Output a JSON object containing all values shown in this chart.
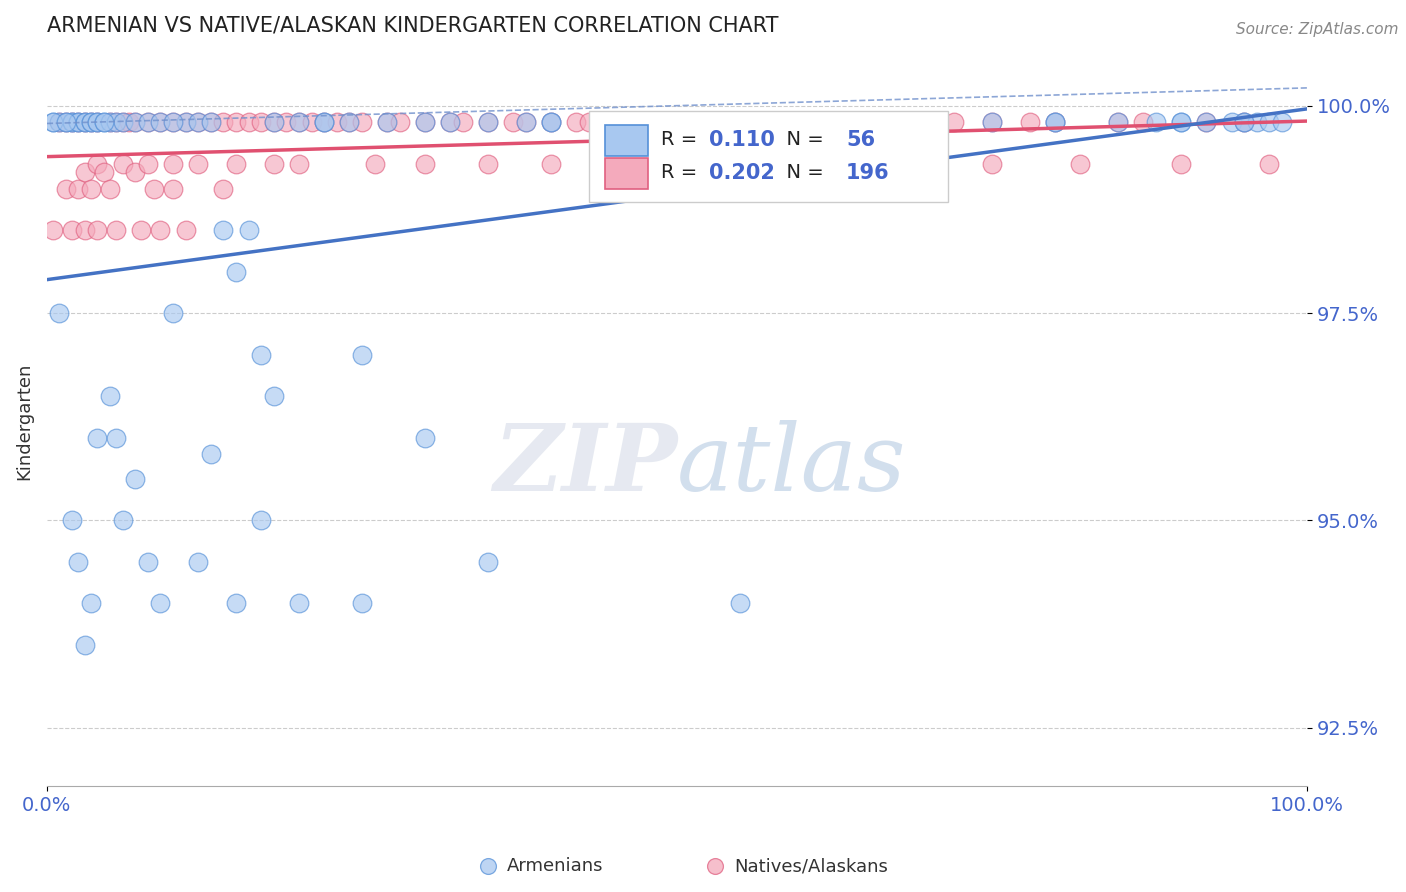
{
  "title": "ARMENIAN VS NATIVE/ALASKAN KINDERGARTEN CORRELATION CHART",
  "source": "Source: ZipAtlas.com",
  "ylabel": "Kindergarten",
  "xlim": [
    0.0,
    1.0
  ],
  "ylim": [
    0.918,
    1.006
  ],
  "yticks": [
    0.925,
    0.95,
    0.975,
    1.0
  ],
  "ytick_labels": [
    "92.5%",
    "95.0%",
    "97.5%",
    "100.0%"
  ],
  "xticks": [
    0.0,
    1.0
  ],
  "xtick_labels": [
    "0.0%",
    "100.0%"
  ],
  "legend_r_armenian": "0.110",
  "legend_n_armenian": "56",
  "legend_r_native": "0.202",
  "legend_n_native": "196",
  "legend_label_armenian": "Armenians",
  "legend_label_native": "Natives/Alaskans",
  "color_armenian_fill": "#A8C8F0",
  "color_armenian_edge": "#5590D8",
  "color_native_fill": "#F4AABC",
  "color_native_edge": "#E06080",
  "color_line_armenian": "#4472C4",
  "color_line_native": "#E05070",
  "color_line_dashed": "#7090CC",
  "color_text_blue": "#4466CC",
  "color_text_dark": "#222222",
  "background_color": "#FFFFFF",
  "grid_color": "#CCCCCC",
  "armenian_x": [
    0.005,
    0.01,
    0.015,
    0.02,
    0.02,
    0.025,
    0.025,
    0.03,
    0.03,
    0.035,
    0.035,
    0.04,
    0.04,
    0.045,
    0.05,
    0.055,
    0.06,
    0.07,
    0.08,
    0.09,
    0.1,
    0.11,
    0.12,
    0.13,
    0.14,
    0.15,
    0.16,
    0.17,
    0.18,
    0.2,
    0.22,
    0.24,
    0.25,
    0.27,
    0.3,
    0.32,
    0.35,
    0.38,
    0.4,
    0.45,
    0.5,
    0.55,
    0.6,
    0.65,
    0.7,
    0.75,
    0.8,
    0.85,
    0.88,
    0.9,
    0.92,
    0.94,
    0.95,
    0.96,
    0.97,
    0.98
  ],
  "armenian_y": [
    0.998,
    0.998,
    0.998,
    0.998,
    0.998,
    0.998,
    0.998,
    0.998,
    0.998,
    0.998,
    0.998,
    0.998,
    0.998,
    0.998,
    0.998,
    0.998,
    0.998,
    0.998,
    0.998,
    0.998,
    0.975,
    0.998,
    0.998,
    0.958,
    0.985,
    0.98,
    0.985,
    0.97,
    0.998,
    0.998,
    0.998,
    0.998,
    0.97,
    0.998,
    0.96,
    0.998,
    0.998,
    0.998,
    0.998,
    0.998,
    0.998,
    0.998,
    0.998,
    0.998,
    0.998,
    0.998,
    0.998,
    0.998,
    0.998,
    0.998,
    0.998,
    0.998,
    0.998,
    0.998,
    0.998,
    0.998
  ],
  "armenian_x2": [
    0.005,
    0.01,
    0.015,
    0.02,
    0.025,
    0.03,
    0.035,
    0.04,
    0.045,
    0.05,
    0.055,
    0.06,
    0.07,
    0.08,
    0.09,
    0.1,
    0.12,
    0.13,
    0.15,
    0.17,
    0.18,
    0.2,
    0.22,
    0.25,
    0.3,
    0.35,
    0.4,
    0.45,
    0.5,
    0.55,
    0.6,
    0.65,
    0.7,
    0.8,
    0.9,
    0.95
  ],
  "armenian_y2": [
    0.998,
    0.975,
    0.998,
    0.95,
    0.945,
    0.935,
    0.94,
    0.96,
    0.998,
    0.965,
    0.96,
    0.95,
    0.955,
    0.945,
    0.94,
    0.998,
    0.945,
    0.998,
    0.94,
    0.95,
    0.965,
    0.94,
    0.998,
    0.94,
    0.998,
    0.945,
    0.998,
    0.998,
    0.998,
    0.94,
    0.998,
    0.998,
    0.998,
    0.998,
    0.998,
    0.998
  ],
  "native_x": [
    0.005,
    0.01,
    0.015,
    0.015,
    0.02,
    0.02,
    0.025,
    0.025,
    0.03,
    0.03,
    0.03,
    0.035,
    0.035,
    0.04,
    0.04,
    0.04,
    0.045,
    0.05,
    0.05,
    0.055,
    0.055,
    0.06,
    0.06,
    0.065,
    0.07,
    0.07,
    0.075,
    0.08,
    0.08,
    0.085,
    0.09,
    0.09,
    0.1,
    0.1,
    0.1,
    0.11,
    0.11,
    0.12,
    0.12,
    0.13,
    0.14,
    0.14,
    0.15,
    0.15,
    0.16,
    0.17,
    0.18,
    0.18,
    0.19,
    0.2,
    0.2,
    0.21,
    0.22,
    0.23,
    0.24,
    0.25,
    0.26,
    0.27,
    0.28,
    0.3,
    0.3,
    0.32,
    0.33,
    0.35,
    0.35,
    0.37,
    0.38,
    0.4,
    0.4,
    0.42,
    0.43,
    0.45,
    0.47,
    0.48,
    0.5,
    0.5,
    0.52,
    0.55,
    0.55,
    0.57,
    0.6,
    0.6,
    0.62,
    0.65,
    0.65,
    0.67,
    0.7,
    0.7,
    0.72,
    0.75,
    0.75,
    0.78,
    0.8,
    0.82,
    0.85,
    0.87,
    0.9,
    0.92,
    0.95,
    0.97
  ],
  "native_y": [
    0.985,
    0.998,
    0.998,
    0.99,
    0.998,
    0.985,
    0.998,
    0.99,
    0.998,
    0.992,
    0.985,
    0.998,
    0.99,
    0.998,
    0.993,
    0.985,
    0.992,
    0.998,
    0.99,
    0.998,
    0.985,
    0.998,
    0.993,
    0.998,
    0.998,
    0.992,
    0.985,
    0.998,
    0.993,
    0.99,
    0.998,
    0.985,
    0.998,
    0.993,
    0.99,
    0.998,
    0.985,
    0.998,
    0.993,
    0.998,
    0.998,
    0.99,
    0.998,
    0.993,
    0.998,
    0.998,
    0.998,
    0.993,
    0.998,
    0.998,
    0.993,
    0.998,
    0.998,
    0.998,
    0.998,
    0.998,
    0.993,
    0.998,
    0.998,
    0.998,
    0.993,
    0.998,
    0.998,
    0.998,
    0.993,
    0.998,
    0.998,
    0.998,
    0.993,
    0.998,
    0.998,
    0.998,
    0.998,
    0.998,
    0.998,
    0.993,
    0.998,
    0.998,
    0.993,
    0.998,
    0.998,
    0.993,
    0.998,
    0.998,
    0.993,
    0.998,
    0.998,
    0.993,
    0.998,
    0.998,
    0.993,
    0.998,
    0.998,
    0.993,
    0.998,
    0.998,
    0.993,
    0.998,
    0.998,
    0.993
  ]
}
